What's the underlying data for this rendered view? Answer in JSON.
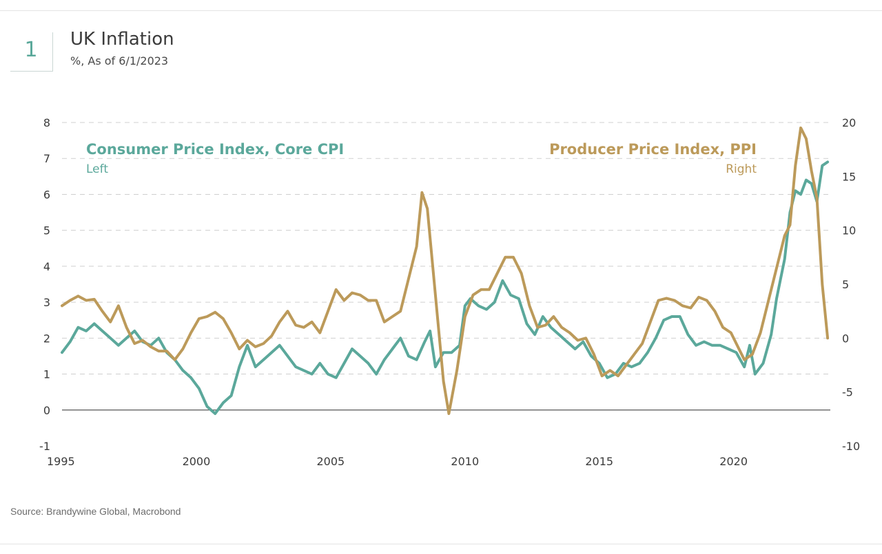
{
  "header": {
    "badge_number": "1",
    "title": "UK Inflation",
    "subtitle": "%, As of 6/1/2023"
  },
  "footer": {
    "source": "Source: Brandywine Global, Macrobond"
  },
  "colors": {
    "cpi": "#5ba89b",
    "ppi": "#bc9a5a",
    "grid": "#cfcfcf",
    "zero_line": "#555555"
  },
  "chart_data": {
    "type": "line",
    "title": "UK Inflation",
    "subtitle": "%, As of 6/1/2023",
    "x_ticks": [
      "1995",
      "2000",
      "2005",
      "2010",
      "2015",
      "2020"
    ],
    "xlim": [
      1995.0,
      2023.6
    ],
    "left_axis": {
      "label": "Left",
      "ticks": [
        "-1",
        "0",
        "1",
        "2",
        "3",
        "4",
        "5",
        "6",
        "7",
        "8"
      ],
      "ylim": [
        -1,
        8
      ]
    },
    "right_axis": {
      "label": "Right",
      "ticks": [
        "-10",
        "-5",
        "0",
        "5",
        "10",
        "15",
        "20"
      ],
      "ylim": [
        -10,
        20
      ]
    },
    "grid": "dashed horizontal",
    "series": [
      {
        "name": "Consumer Price Index, Core CPI",
        "axis": "left",
        "legend_sub": "Left",
        "points": [
          [
            1995.0,
            1.6
          ],
          [
            1995.3,
            1.9
          ],
          [
            1995.6,
            2.3
          ],
          [
            1995.9,
            2.2
          ],
          [
            1996.2,
            2.4
          ],
          [
            1996.5,
            2.2
          ],
          [
            1996.8,
            2.0
          ],
          [
            1997.1,
            1.8
          ],
          [
            1997.4,
            2.0
          ],
          [
            1997.7,
            2.2
          ],
          [
            1998.0,
            1.9
          ],
          [
            1998.3,
            1.8
          ],
          [
            1998.6,
            2.0
          ],
          [
            1998.9,
            1.6
          ],
          [
            1999.2,
            1.4
          ],
          [
            1999.5,
            1.1
          ],
          [
            1999.8,
            0.9
          ],
          [
            2000.1,
            0.6
          ],
          [
            2000.4,
            0.1
          ],
          [
            2000.7,
            -0.1
          ],
          [
            2001.0,
            0.2
          ],
          [
            2001.3,
            0.4
          ],
          [
            2001.6,
            1.2
          ],
          [
            2001.9,
            1.8
          ],
          [
            2002.2,
            1.2
          ],
          [
            2002.5,
            1.4
          ],
          [
            2002.8,
            1.6
          ],
          [
            2003.1,
            1.8
          ],
          [
            2003.4,
            1.5
          ],
          [
            2003.7,
            1.2
          ],
          [
            2004.0,
            1.1
          ],
          [
            2004.3,
            1.0
          ],
          [
            2004.6,
            1.3
          ],
          [
            2004.9,
            1.0
          ],
          [
            2005.2,
            0.9
          ],
          [
            2005.5,
            1.3
          ],
          [
            2005.8,
            1.7
          ],
          [
            2006.1,
            1.5
          ],
          [
            2006.4,
            1.3
          ],
          [
            2006.7,
            1.0
          ],
          [
            2007.0,
            1.4
          ],
          [
            2007.3,
            1.7
          ],
          [
            2007.6,
            2.0
          ],
          [
            2007.9,
            1.5
          ],
          [
            2008.2,
            1.4
          ],
          [
            2008.5,
            1.9
          ],
          [
            2008.7,
            2.2
          ],
          [
            2008.9,
            1.2
          ],
          [
            2009.2,
            1.6
          ],
          [
            2009.5,
            1.6
          ],
          [
            2009.8,
            1.8
          ],
          [
            2010.0,
            2.9
          ],
          [
            2010.2,
            3.1
          ],
          [
            2010.5,
            2.9
          ],
          [
            2010.8,
            2.8
          ],
          [
            2011.1,
            3.0
          ],
          [
            2011.4,
            3.6
          ],
          [
            2011.7,
            3.2
          ],
          [
            2012.0,
            3.1
          ],
          [
            2012.3,
            2.4
          ],
          [
            2012.6,
            2.1
          ],
          [
            2012.9,
            2.6
          ],
          [
            2013.2,
            2.3
          ],
          [
            2013.5,
            2.1
          ],
          [
            2013.8,
            1.9
          ],
          [
            2014.1,
            1.7
          ],
          [
            2014.4,
            1.9
          ],
          [
            2014.7,
            1.5
          ],
          [
            2015.0,
            1.3
          ],
          [
            2015.3,
            0.9
          ],
          [
            2015.6,
            1.0
          ],
          [
            2015.9,
            1.3
          ],
          [
            2016.2,
            1.2
          ],
          [
            2016.5,
            1.3
          ],
          [
            2016.8,
            1.6
          ],
          [
            2017.1,
            2.0
          ],
          [
            2017.4,
            2.5
          ],
          [
            2017.7,
            2.6
          ],
          [
            2018.0,
            2.6
          ],
          [
            2018.3,
            2.1
          ],
          [
            2018.6,
            1.8
          ],
          [
            2018.9,
            1.9
          ],
          [
            2019.2,
            1.8
          ],
          [
            2019.5,
            1.8
          ],
          [
            2019.8,
            1.7
          ],
          [
            2020.1,
            1.6
          ],
          [
            2020.4,
            1.2
          ],
          [
            2020.6,
            1.8
          ],
          [
            2020.8,
            1.0
          ],
          [
            2021.1,
            1.3
          ],
          [
            2021.4,
            2.1
          ],
          [
            2021.6,
            3.1
          ],
          [
            2021.9,
            4.2
          ],
          [
            2022.1,
            5.5
          ],
          [
            2022.3,
            6.1
          ],
          [
            2022.5,
            6.0
          ],
          [
            2022.7,
            6.4
          ],
          [
            2022.9,
            6.3
          ],
          [
            2023.1,
            5.8
          ],
          [
            2023.3,
            6.8
          ],
          [
            2023.5,
            6.9
          ]
        ]
      },
      {
        "name": "Producer Price Index, PPI",
        "axis": "right",
        "legend_sub": "Right",
        "points": [
          [
            1995.0,
            3.0
          ],
          [
            1995.3,
            3.5
          ],
          [
            1995.6,
            3.9
          ],
          [
            1995.9,
            3.5
          ],
          [
            1996.2,
            3.6
          ],
          [
            1996.5,
            2.5
          ],
          [
            1996.8,
            1.5
          ],
          [
            1997.1,
            3.0
          ],
          [
            1997.4,
            1.0
          ],
          [
            1997.7,
            -0.5
          ],
          [
            1998.0,
            -0.2
          ],
          [
            1998.3,
            -0.8
          ],
          [
            1998.6,
            -1.2
          ],
          [
            1998.9,
            -1.2
          ],
          [
            1999.2,
            -2.0
          ],
          [
            1999.5,
            -1.0
          ],
          [
            1999.8,
            0.5
          ],
          [
            2000.1,
            1.8
          ],
          [
            2000.4,
            2.0
          ],
          [
            2000.7,
            2.4
          ],
          [
            2001.0,
            1.8
          ],
          [
            2001.3,
            0.5
          ],
          [
            2001.6,
            -1.0
          ],
          [
            2001.9,
            -0.2
          ],
          [
            2002.2,
            -0.8
          ],
          [
            2002.5,
            -0.5
          ],
          [
            2002.8,
            0.2
          ],
          [
            2003.1,
            1.5
          ],
          [
            2003.4,
            2.5
          ],
          [
            2003.7,
            1.2
          ],
          [
            2004.0,
            1.0
          ],
          [
            2004.3,
            1.5
          ],
          [
            2004.6,
            0.5
          ],
          [
            2004.9,
            2.5
          ],
          [
            2005.2,
            4.5
          ],
          [
            2005.5,
            3.5
          ],
          [
            2005.8,
            4.2
          ],
          [
            2006.1,
            4.0
          ],
          [
            2006.4,
            3.5
          ],
          [
            2006.7,
            3.5
          ],
          [
            2007.0,
            1.5
          ],
          [
            2007.3,
            2.0
          ],
          [
            2007.6,
            2.5
          ],
          [
            2007.9,
            5.5
          ],
          [
            2008.2,
            8.5
          ],
          [
            2008.4,
            13.5
          ],
          [
            2008.6,
            12.0
          ],
          [
            2008.9,
            4.0
          ],
          [
            2009.2,
            -4.0
          ],
          [
            2009.4,
            -7.0
          ],
          [
            2009.7,
            -3.0
          ],
          [
            2010.0,
            2.0
          ],
          [
            2010.3,
            4.0
          ],
          [
            2010.6,
            4.5
          ],
          [
            2010.9,
            4.5
          ],
          [
            2011.2,
            6.0
          ],
          [
            2011.5,
            7.5
          ],
          [
            2011.8,
            7.5
          ],
          [
            2012.1,
            6.0
          ],
          [
            2012.4,
            3.0
          ],
          [
            2012.7,
            1.0
          ],
          [
            2013.0,
            1.2
          ],
          [
            2013.3,
            2.0
          ],
          [
            2013.6,
            1.0
          ],
          [
            2013.9,
            0.5
          ],
          [
            2014.2,
            -0.2
          ],
          [
            2014.5,
            0.0
          ],
          [
            2014.8,
            -1.5
          ],
          [
            2015.1,
            -3.5
          ],
          [
            2015.4,
            -3.0
          ],
          [
            2015.7,
            -3.5
          ],
          [
            2016.0,
            -2.5
          ],
          [
            2016.3,
            -1.5
          ],
          [
            2016.6,
            -0.5
          ],
          [
            2016.9,
            1.5
          ],
          [
            2017.2,
            3.5
          ],
          [
            2017.5,
            3.7
          ],
          [
            2017.8,
            3.5
          ],
          [
            2018.1,
            3.0
          ],
          [
            2018.4,
            2.8
          ],
          [
            2018.7,
            3.8
          ],
          [
            2019.0,
            3.5
          ],
          [
            2019.3,
            2.5
          ],
          [
            2019.6,
            1.0
          ],
          [
            2019.9,
            0.5
          ],
          [
            2020.2,
            -1.0
          ],
          [
            2020.4,
            -2.0
          ],
          [
            2020.7,
            -1.5
          ],
          [
            2021.0,
            0.5
          ],
          [
            2021.3,
            3.5
          ],
          [
            2021.6,
            6.5
          ],
          [
            2021.9,
            9.5
          ],
          [
            2022.1,
            10.5
          ],
          [
            2022.3,
            16.0
          ],
          [
            2022.5,
            19.5
          ],
          [
            2022.7,
            18.5
          ],
          [
            2022.9,
            15.5
          ],
          [
            2023.1,
            13.0
          ],
          [
            2023.3,
            5.0
          ],
          [
            2023.5,
            0.0
          ]
        ]
      }
    ]
  }
}
